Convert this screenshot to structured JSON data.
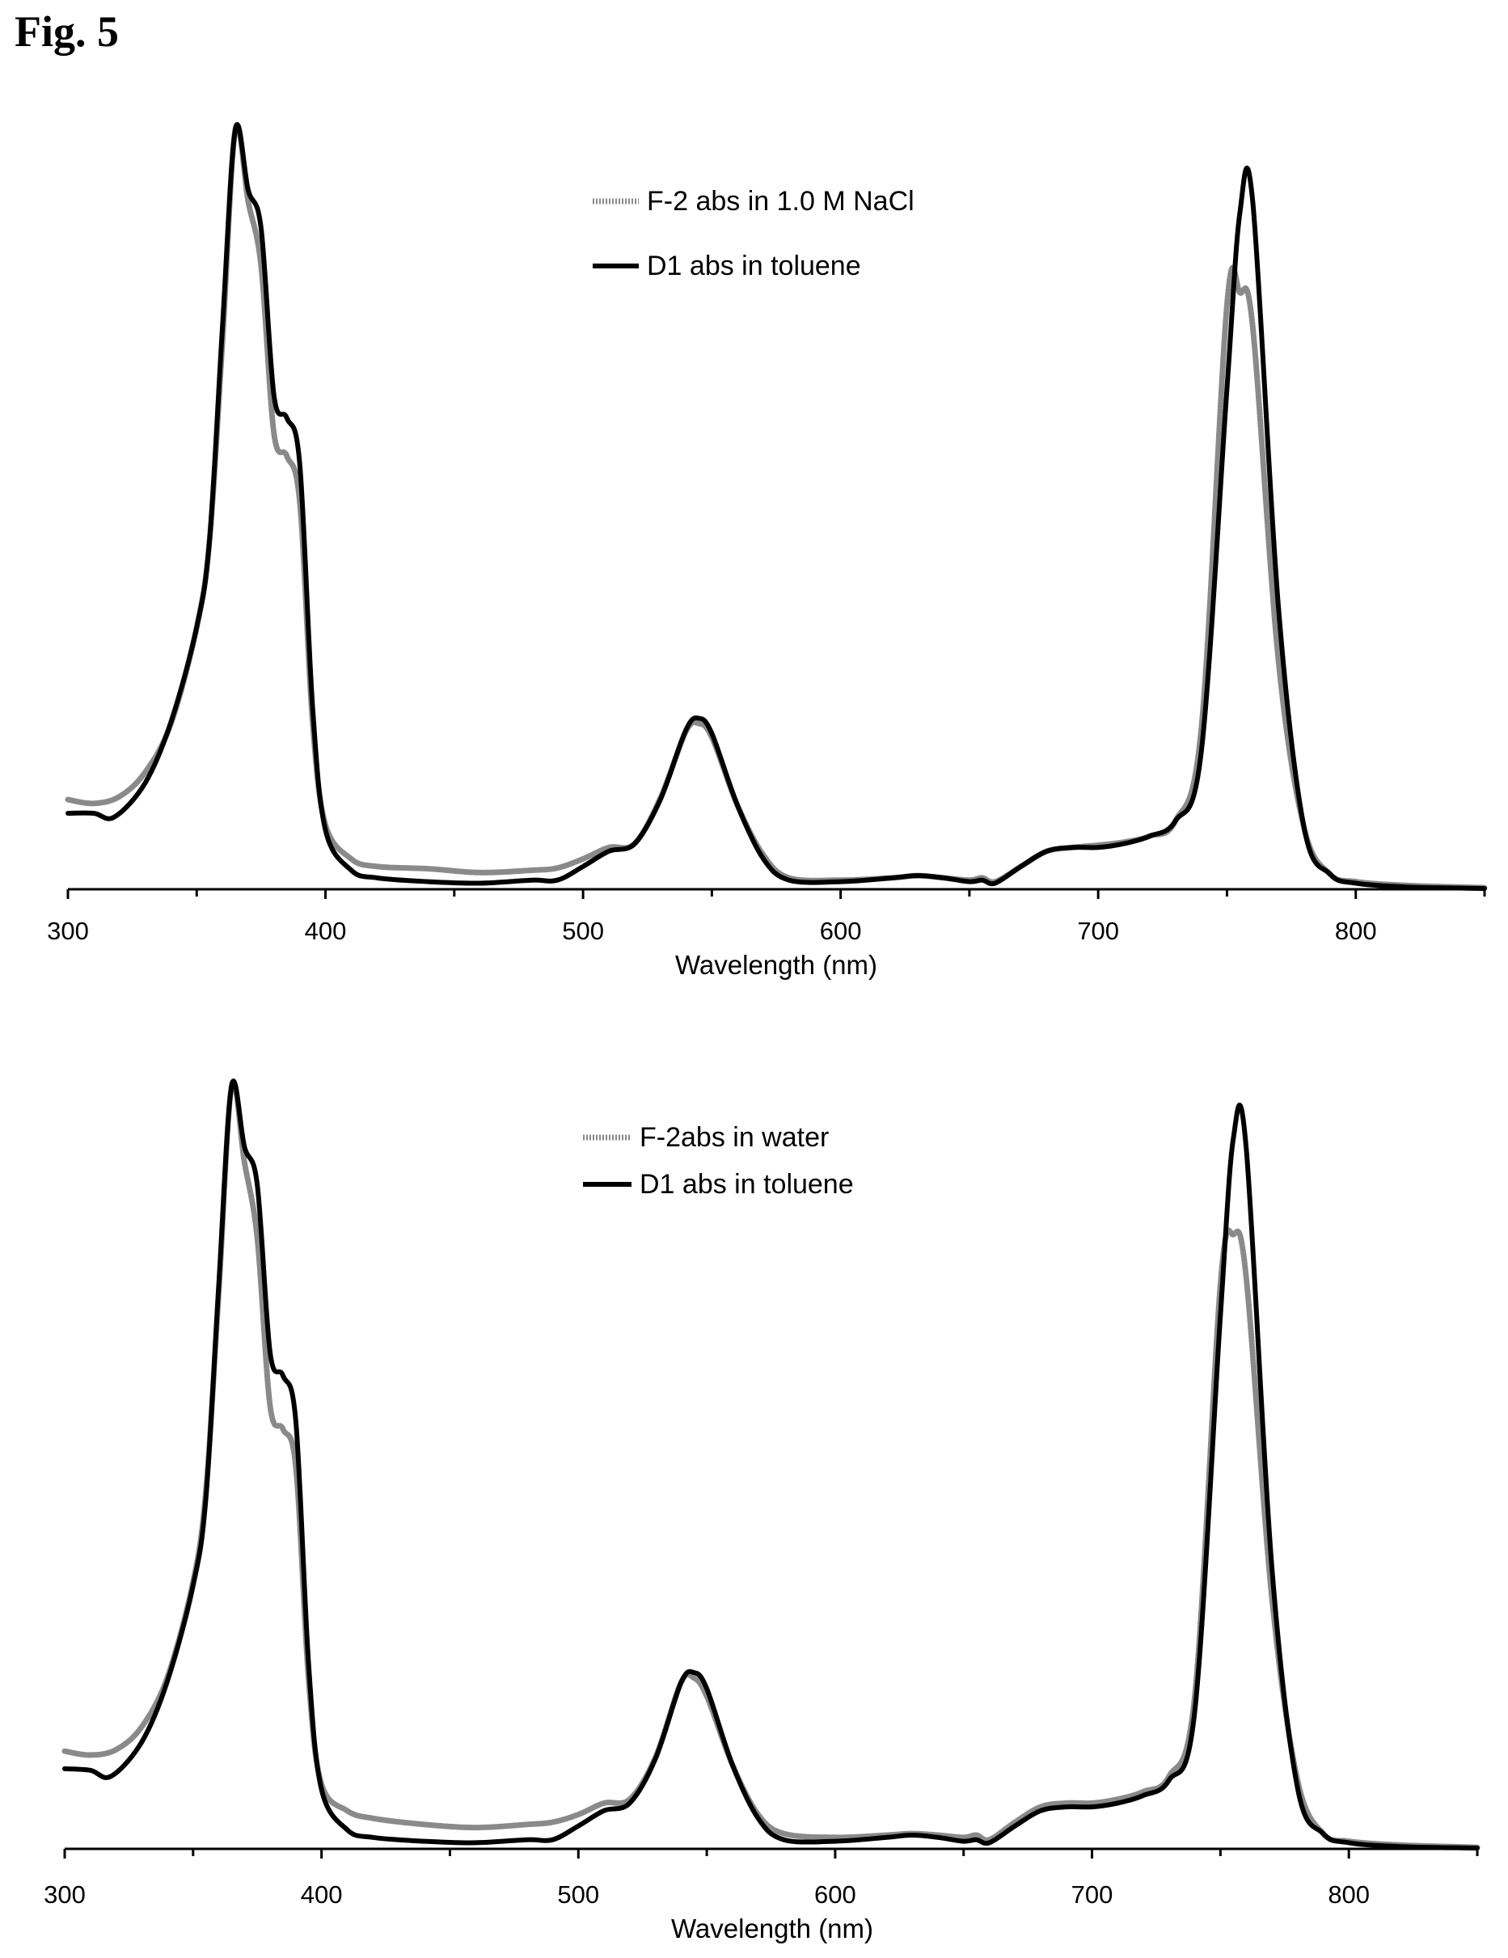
{
  "figure_label": "Fig. 5",
  "chart_data": [
    {
      "type": "line",
      "xlabel": "Wavelength (nm)",
      "ylabel": "",
      "xlim": [
        300,
        850
      ],
      "ylim": [
        0,
        1.0
      ],
      "x_ticks": [
        300,
        400,
        500,
        600,
        700,
        800
      ],
      "x_minor_ticks": [
        350,
        450,
        550,
        650,
        750,
        850
      ],
      "y_axis_shown": false,
      "grid": false,
      "legend_position": "top-center",
      "series": [
        {
          "name": "F-2 abs in 1.0 M NaCl",
          "style": "dashed-gray",
          "color": "#8a8a8a",
          "x": [
            300,
            310,
            320,
            330,
            340,
            350,
            355,
            360,
            365,
            370,
            375,
            380,
            385,
            390,
            395,
            400,
            410,
            420,
            440,
            460,
            480,
            490,
            500,
            510,
            520,
            530,
            540,
            545,
            550,
            560,
            570,
            580,
            600,
            620,
            630,
            640,
            650,
            655,
            660,
            670,
            680,
            690,
            700,
            710,
            720,
            730,
            740,
            750,
            755,
            760,
            770,
            780,
            790,
            800,
            820,
            850
          ],
          "y": [
            0.118,
            0.113,
            0.122,
            0.154,
            0.218,
            0.345,
            0.46,
            0.72,
            1.0,
            0.905,
            0.82,
            0.6,
            0.57,
            0.51,
            0.22,
            0.085,
            0.04,
            0.03,
            0.027,
            0.022,
            0.025,
            0.028,
            0.04,
            0.055,
            0.06,
            0.12,
            0.208,
            0.218,
            0.2,
            0.11,
            0.045,
            0.015,
            0.012,
            0.015,
            0.018,
            0.015,
            0.012,
            0.015,
            0.01,
            0.03,
            0.05,
            0.055,
            0.058,
            0.062,
            0.07,
            0.09,
            0.21,
            0.77,
            0.785,
            0.74,
            0.3,
            0.08,
            0.02,
            0.01,
            0.005,
            0.002
          ]
        },
        {
          "name": "D1 abs in toluene",
          "style": "solid-black",
          "color": "#000000",
          "x": [
            300,
            310,
            318,
            330,
            340,
            350,
            355,
            360,
            365,
            370,
            375,
            380,
            385,
            390,
            395,
            400,
            410,
            420,
            440,
            460,
            480,
            490,
            500,
            510,
            520,
            530,
            540,
            545,
            550,
            560,
            570,
            580,
            600,
            620,
            630,
            640,
            650,
            655,
            660,
            670,
            680,
            690,
            700,
            710,
            720,
            730,
            740,
            750,
            755,
            760,
            770,
            780,
            790,
            800,
            820,
            850
          ],
          "y": [
            0.1,
            0.1,
            0.095,
            0.14,
            0.22,
            0.345,
            0.46,
            0.74,
            1.0,
            0.92,
            0.87,
            0.65,
            0.62,
            0.56,
            0.24,
            0.078,
            0.025,
            0.015,
            0.01,
            0.008,
            0.012,
            0.012,
            0.03,
            0.05,
            0.06,
            0.118,
            0.21,
            0.225,
            0.205,
            0.11,
            0.04,
            0.012,
            0.01,
            0.015,
            0.018,
            0.015,
            0.01,
            0.012,
            0.008,
            0.03,
            0.05,
            0.055,
            0.055,
            0.06,
            0.07,
            0.09,
            0.18,
            0.66,
            0.89,
            0.905,
            0.37,
            0.08,
            0.02,
            0.008,
            0.003,
            0.001
          ]
        }
      ]
    },
    {
      "type": "line",
      "xlabel": "Wavelength (nm)",
      "ylabel": "",
      "xlim": [
        300,
        850
      ],
      "ylim": [
        0,
        1.0
      ],
      "x_ticks": [
        300,
        400,
        500,
        600,
        700,
        800
      ],
      "x_minor_ticks": [
        350,
        450,
        550,
        650,
        750,
        850
      ],
      "y_axis_shown": false,
      "grid": false,
      "legend_position": "top-center",
      "series": [
        {
          "name": "F-2abs in water",
          "style": "dashed-gray",
          "color": "#8a8a8a",
          "x": [
            300,
            310,
            320,
            330,
            340,
            350,
            355,
            360,
            365,
            370,
            375,
            380,
            385,
            390,
            395,
            400,
            410,
            420,
            440,
            460,
            480,
            490,
            500,
            510,
            520,
            530,
            540,
            545,
            550,
            560,
            570,
            580,
            600,
            620,
            630,
            640,
            650,
            655,
            660,
            670,
            680,
            690,
            700,
            710,
            720,
            730,
            740,
            750,
            755,
            760,
            770,
            780,
            790,
            800,
            820,
            850
          ],
          "y": [
            0.128,
            0.123,
            0.13,
            0.16,
            0.225,
            0.35,
            0.47,
            0.73,
            1.0,
            0.9,
            0.8,
            0.58,
            0.55,
            0.5,
            0.22,
            0.085,
            0.05,
            0.04,
            0.032,
            0.028,
            0.032,
            0.035,
            0.045,
            0.06,
            0.065,
            0.12,
            0.218,
            0.224,
            0.2,
            0.11,
            0.045,
            0.02,
            0.015,
            0.018,
            0.02,
            0.018,
            0.015,
            0.018,
            0.012,
            0.035,
            0.055,
            0.06,
            0.06,
            0.065,
            0.075,
            0.095,
            0.2,
            0.74,
            0.805,
            0.75,
            0.33,
            0.09,
            0.02,
            0.01,
            0.005,
            0.002
          ]
        },
        {
          "name": "D1 abs in toluene",
          "style": "solid-black",
          "color": "#000000",
          "x": [
            300,
            310,
            318,
            330,
            340,
            350,
            355,
            360,
            365,
            370,
            375,
            380,
            385,
            390,
            395,
            400,
            410,
            420,
            440,
            460,
            480,
            490,
            500,
            510,
            520,
            530,
            540,
            545,
            550,
            560,
            570,
            580,
            600,
            620,
            630,
            640,
            650,
            655,
            660,
            670,
            680,
            690,
            700,
            710,
            720,
            730,
            740,
            750,
            755,
            760,
            770,
            780,
            790,
            800,
            820,
            850
          ],
          "y": [
            0.105,
            0.103,
            0.095,
            0.14,
            0.22,
            0.345,
            0.46,
            0.74,
            1.0,
            0.92,
            0.87,
            0.65,
            0.62,
            0.56,
            0.24,
            0.078,
            0.025,
            0.015,
            0.01,
            0.008,
            0.012,
            0.012,
            0.03,
            0.05,
            0.06,
            0.118,
            0.218,
            0.231,
            0.21,
            0.11,
            0.04,
            0.012,
            0.01,
            0.015,
            0.018,
            0.015,
            0.01,
            0.012,
            0.008,
            0.03,
            0.05,
            0.055,
            0.055,
            0.06,
            0.07,
            0.09,
            0.18,
            0.7,
            0.93,
            0.92,
            0.37,
            0.08,
            0.02,
            0.008,
            0.003,
            0.001
          ]
        }
      ]
    }
  ]
}
